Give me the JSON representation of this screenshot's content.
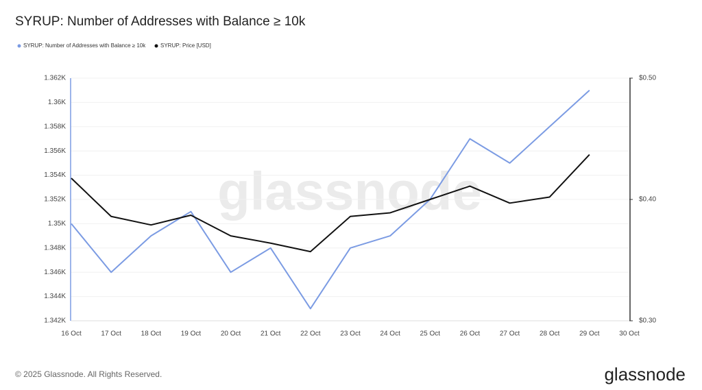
{
  "chart_data": {
    "type": "line",
    "title": "SYRUP: Number of Addresses with Balance ≥ 10k",
    "categories": [
      "16 Oct",
      "17 Oct",
      "18 Oct",
      "19 Oct",
      "20 Oct",
      "21 Oct",
      "22 Oct",
      "23 Oct",
      "24 Oct",
      "25 Oct",
      "26 Oct",
      "27 Oct",
      "28 Oct",
      "29 Oct",
      "30 Oct"
    ],
    "series": [
      {
        "name": "SYRUP: Number of Addresses with Balance ≥ 10k",
        "color": "#7b9be3",
        "values": [
          1350,
          1346,
          1349,
          1351,
          1346,
          1348,
          1343,
          1348,
          1349,
          1352,
          1357,
          1355,
          1358,
          1361,
          null
        ]
      },
      {
        "name": "SYRUP: Price [USD]",
        "color": "#111111",
        "axis": "y2",
        "values": [
          0.4175,
          0.386,
          0.379,
          0.387,
          0.37,
          0.364,
          0.357,
          0.386,
          0.389,
          0.4,
          0.411,
          0.397,
          0.402,
          0.437,
          null
        ]
      }
    ],
    "ylim": [
      1342,
      1362
    ],
    "yticks": [
      {
        "value": 1342,
        "label": "1.342K"
      },
      {
        "value": 1344,
        "label": "1.344K"
      },
      {
        "value": 1346,
        "label": "1.346K"
      },
      {
        "value": 1348,
        "label": "1.348K"
      },
      {
        "value": 1350,
        "label": "1.35K"
      },
      {
        "value": 1352,
        "label": "1.352K"
      },
      {
        "value": 1354,
        "label": "1.354K"
      },
      {
        "value": 1356,
        "label": "1.356K"
      },
      {
        "value": 1358,
        "label": "1.358K"
      },
      {
        "value": 1360,
        "label": "1.36K"
      },
      {
        "value": 1362,
        "label": "1.362K"
      }
    ],
    "y2lim": [
      0.3,
      0.5
    ],
    "y2ticks": [
      {
        "value": 0.3,
        "label": "$0.30"
      },
      {
        "value": 0.4,
        "label": "$0.40"
      },
      {
        "value": 0.5,
        "label": "$0.50"
      }
    ],
    "grid": true,
    "legend": "top-left",
    "watermark": "glassnode",
    "footer": "© 2025 Glassnode. All Rights Reserved.",
    "logo": "glassnode"
  }
}
